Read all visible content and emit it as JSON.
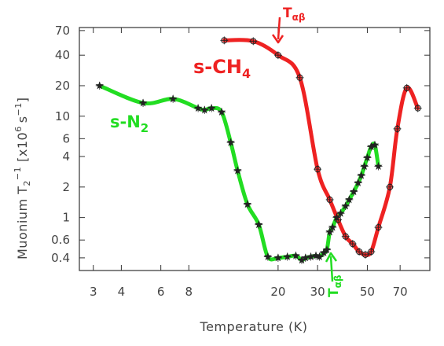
{
  "chart_data": {
    "type": "scatter",
    "xlabel": "Temperature (K)",
    "ylabel": "Muonium T",
    "ylabel_sub": "2",
    "ylabel_sup": "−1",
    "ylabel_units": "[x10",
    "ylabel_units_sup": "6",
    "ylabel_units_tail": "s",
    "ylabel_units_tail_sup": "−1",
    "ylabel_close": "]",
    "xscale": "log",
    "yscale": "log",
    "xlim": [
      2.6,
      95
    ],
    "ylim": [
      0.3,
      75
    ],
    "x_ticks": [
      3,
      4,
      6,
      8,
      20,
      30,
      50,
      70
    ],
    "y_ticks": [
      0.4,
      0.6,
      1,
      2,
      4,
      6,
      10,
      20,
      40,
      70
    ],
    "x_tick_labels": [
      "3",
      "4",
      "6",
      "8",
      "20",
      "30",
      "50",
      "70"
    ],
    "y_tick_labels": [
      "0.4",
      "0.6",
      "1",
      "2",
      "4",
      "6",
      "10",
      "20",
      "40",
      "70"
    ],
    "series": [
      {
        "name": "s-N",
        "name_sub": "2",
        "marker": "star",
        "color": "#22dd22",
        "x": [
          3.2,
          5.0,
          6.8,
          8.8,
          9.4,
          10.1,
          11.2,
          12.3,
          13.2,
          14.6,
          16.4,
          18.0,
          20.0,
          22.0,
          24.0,
          25.5,
          26.5,
          28.0,
          29.5,
          30.6,
          32.0,
          33.0,
          34.0,
          35.0,
          36.5,
          38.0,
          40.0,
          41.5,
          43.5,
          45.5,
          47.0,
          48.5,
          50.0,
          52.0,
          54.0,
          56.0
        ],
        "y": [
          20.0,
          13.5,
          14.8,
          12.0,
          11.5,
          12.0,
          11.0,
          5.5,
          2.9,
          1.35,
          0.85,
          0.41,
          0.4,
          0.41,
          0.42,
          0.38,
          0.4,
          0.41,
          0.42,
          0.41,
          0.45,
          0.48,
          0.72,
          0.8,
          1.0,
          1.1,
          1.3,
          1.5,
          1.8,
          2.2,
          2.6,
          3.2,
          3.9,
          5.0,
          5.2,
          3.2
        ]
      },
      {
        "name": "s-CH",
        "name_sub": "4",
        "marker": "circle",
        "color": "#ee2222",
        "x": [
          11.5,
          15.5,
          20.0,
          25.0,
          30.0,
          34.0,
          37.0,
          40.0,
          43.0,
          46.0,
          49.0,
          52.0,
          56.0,
          63.0,
          68.0,
          75.0,
          84.0
        ],
        "y": [
          56.0,
          55.0,
          40.0,
          24.0,
          3.0,
          1.5,
          0.95,
          0.65,
          0.55,
          0.46,
          0.43,
          0.46,
          0.8,
          2.0,
          7.5,
          19.0,
          12.0
        ]
      }
    ],
    "annotations": [
      {
        "id": "t-ab-top",
        "text": "T",
        "sub": "αβ"
      },
      {
        "id": "t-ab-bottom",
        "text": "T",
        "sub": "αβ"
      }
    ],
    "grid": false,
    "legend": "none",
    "colors": {
      "axis": "#333333",
      "marker": "#222222",
      "n2_curve": "#22dd22",
      "ch4_curve": "#ee2222"
    }
  }
}
